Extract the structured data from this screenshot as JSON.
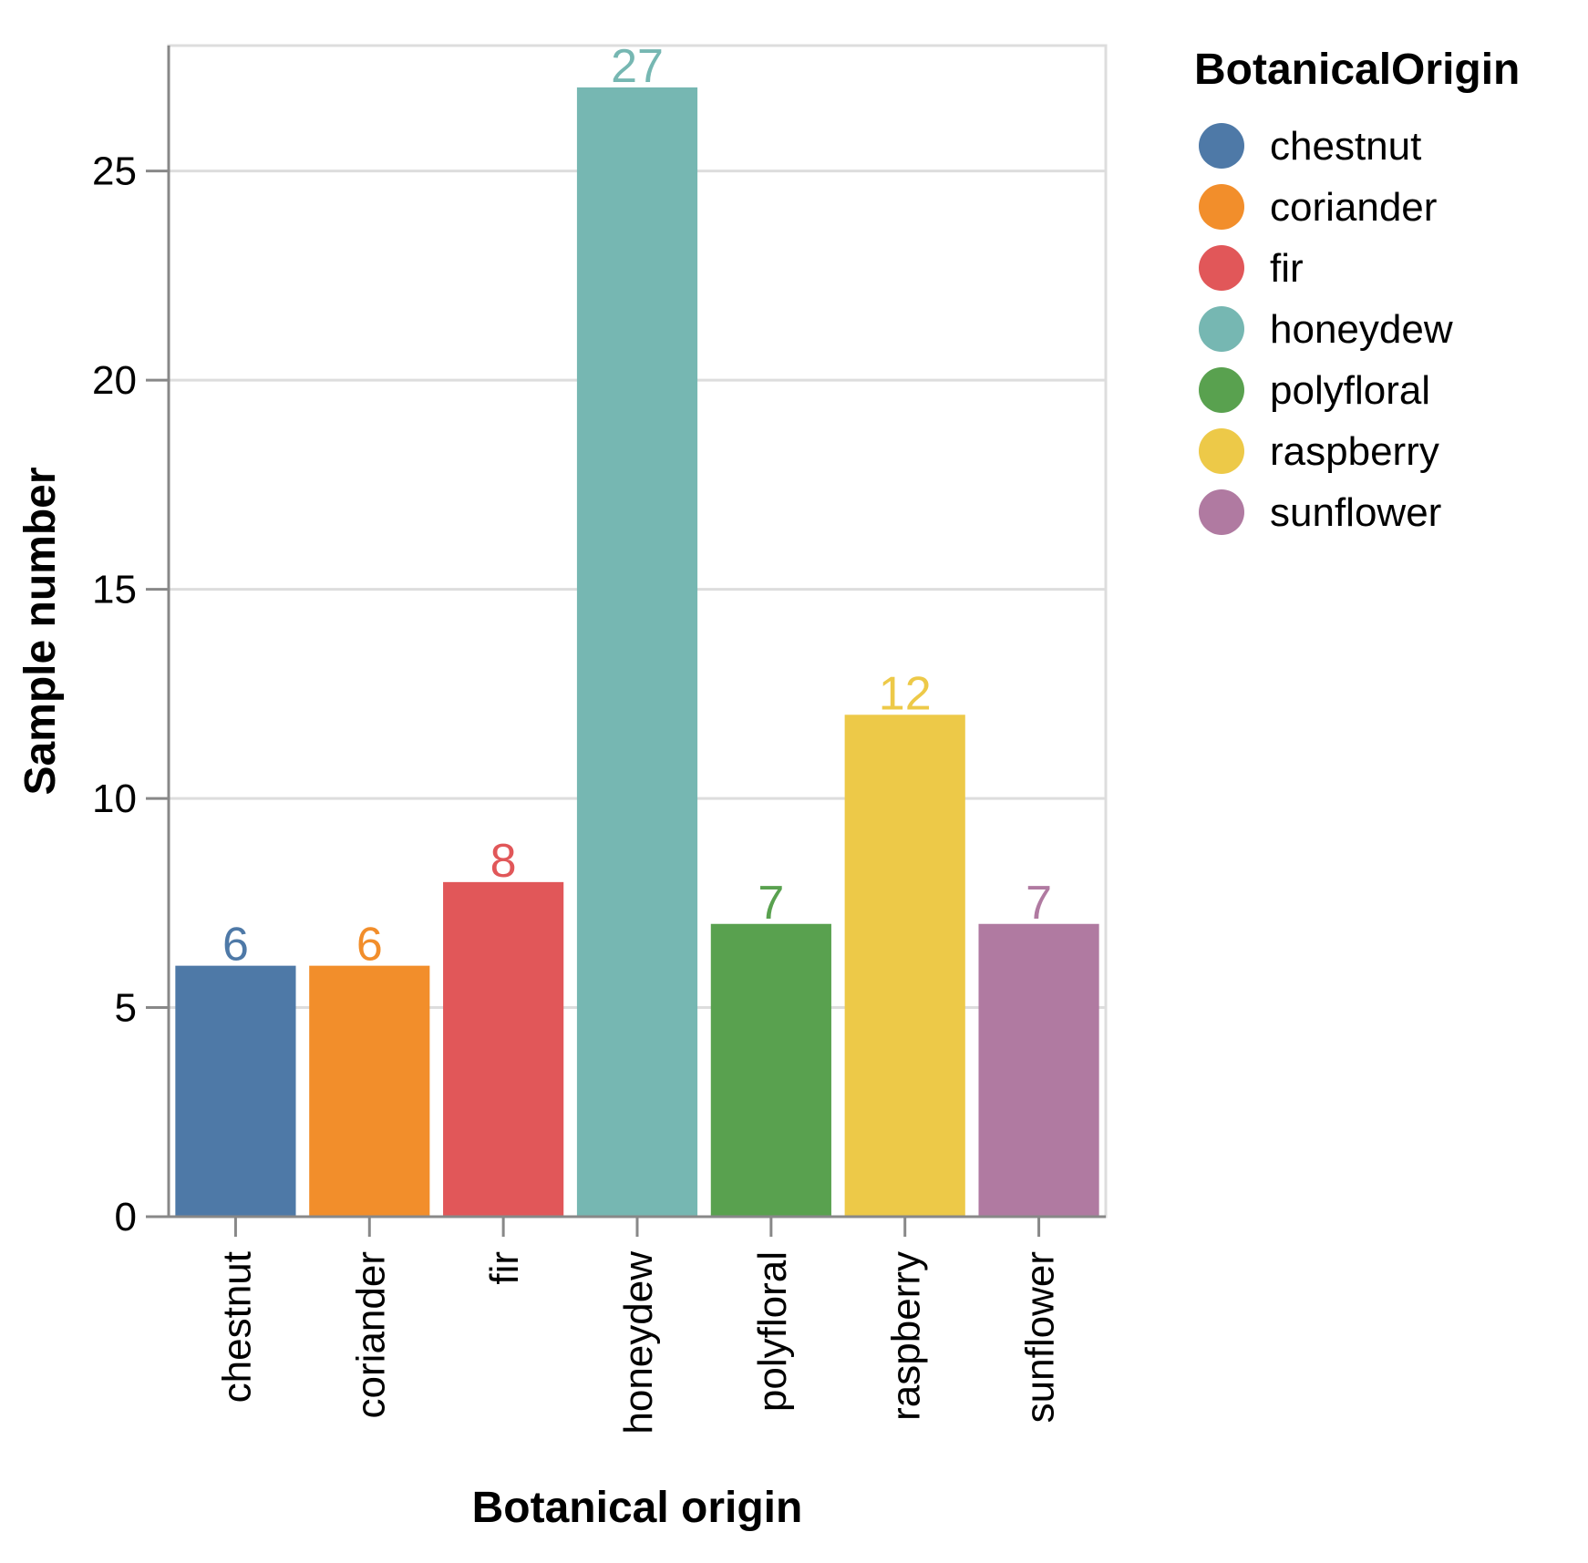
{
  "chart_data": {
    "type": "bar",
    "title": "",
    "xlabel": "Botanical origin",
    "ylabel": "Sample number",
    "categories": [
      "chestnut",
      "coriander",
      "fir",
      "honeydew",
      "polyfloral",
      "raspberry",
      "sunflower"
    ],
    "values": [
      6,
      6,
      8,
      27,
      7,
      12,
      7
    ],
    "value_labels": [
      "6",
      "6",
      "8",
      "27",
      "7",
      "12",
      "7"
    ],
    "colors": [
      "#4e79a7",
      "#f28e2b",
      "#e15759",
      "#76b7b2",
      "#59a14f",
      "#edc948",
      "#b07aa1"
    ],
    "ylim": [
      0,
      28
    ],
    "yticks": [
      0,
      5,
      10,
      15,
      20,
      25
    ],
    "ytick_labels": [
      "0",
      "5",
      "10",
      "15",
      "20",
      "25"
    ],
    "grid": true,
    "legend": {
      "title": "BotanicalOrigin",
      "placement": "right",
      "entries": [
        "chestnut",
        "coriander",
        "fir",
        "honeydew",
        "polyfloral",
        "raspberry",
        "sunflower"
      ]
    }
  }
}
